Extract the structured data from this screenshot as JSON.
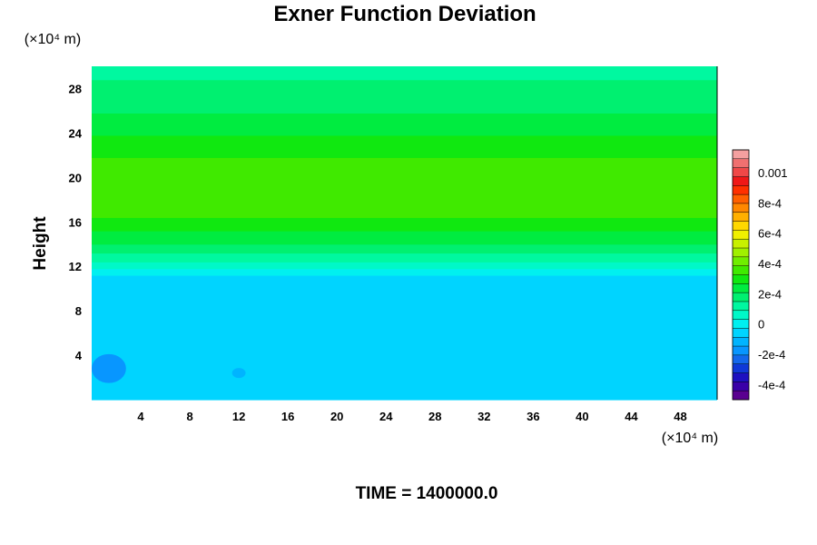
{
  "chart_data": {
    "type": "heatmap",
    "title": "Exner Function Deviation",
    "ylabel": "Height",
    "xlabel": "",
    "x_unit": "(×10⁴ m)",
    "y_unit": "(×10⁴ m)",
    "footer": "TIME = 1400000.0",
    "xlim": [
      0,
      51
    ],
    "ylim": [
      0,
      30
    ],
    "x_ticks": [
      4,
      8,
      12,
      16,
      20,
      24,
      28,
      32,
      36,
      40,
      44,
      48
    ],
    "x_tick_labels": [
      "4",
      "8",
      "12",
      "16",
      "20",
      "24",
      "28",
      "32",
      "36",
      "40",
      "44",
      "48"
    ],
    "y_ticks": [
      4,
      8,
      12,
      16,
      20,
      24,
      28
    ],
    "y_tick_labels": [
      "4",
      "8",
      "12",
      "16",
      "20",
      "24",
      "28"
    ],
    "colorbar": {
      "min": -0.0005,
      "max": 0.00115,
      "tick_values": [
        0.001,
        0.0008,
        0.0006,
        0.0004,
        0.0002,
        0,
        -0.0002,
        -0.0004
      ],
      "tick_labels": [
        "0.001",
        "8e-4",
        "6e-4",
        "4e-4",
        "2e-4",
        "0",
        "-2e-4",
        "-4e-4"
      ],
      "colors": [
        "#5a0090",
        "#3a00a8",
        "#1e10c0",
        "#1038d8",
        "#1468ec",
        "#0896ff",
        "#00b4ff",
        "#00d4ff",
        "#00f0f0",
        "#00f8c8",
        "#00f8a0",
        "#00f070",
        "#00ec40",
        "#10e810",
        "#40ea00",
        "#70ee00",
        "#a0f000",
        "#c8f000",
        "#f0f000",
        "#ffd800",
        "#ffb000",
        "#ff8800",
        "#ff6000",
        "#ff3000",
        "#f01818",
        "#f04848",
        "#f07070",
        "#f4a0a0"
      ]
    },
    "profile": {
      "height": [
        0,
        11,
        11.6,
        12.5,
        14,
        16,
        18,
        20,
        22,
        24,
        26,
        28,
        30
      ],
      "value": [
        -6e-05,
        -6e-05,
        1e-05,
        9e-05,
        0.00021,
        0.00031,
        0.00037,
        0.00036,
        0.00032,
        0.00026,
        0.0002,
        0.00016,
        0.00013
      ]
    },
    "features": [
      {
        "x": 1.4,
        "y": 2.8,
        "rx": 1.4,
        "ry": 1.3,
        "value": -0.00015
      },
      {
        "x": 12.0,
        "y": 2.4,
        "rx": 0.55,
        "ry": 0.45,
        "value": -0.00012
      }
    ]
  }
}
